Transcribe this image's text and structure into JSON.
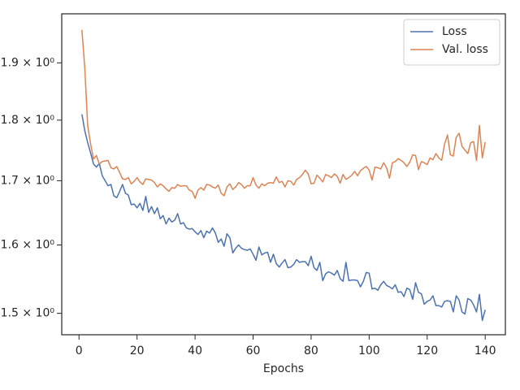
{
  "chart_data": {
    "type": "line",
    "xlabel": "Epochs",
    "x": [
      1,
      2,
      3,
      4,
      5,
      6,
      7,
      8,
      9,
      10,
      11,
      12,
      13,
      14,
      15,
      16,
      17,
      18,
      19,
      20,
      21,
      22,
      23,
      24,
      25,
      26,
      27,
      28,
      29,
      30,
      31,
      32,
      33,
      34,
      35,
      36,
      37,
      38,
      39,
      40,
      41,
      42,
      43,
      44,
      45,
      46,
      47,
      48,
      49,
      50,
      51,
      52,
      53,
      54,
      55,
      56,
      57,
      58,
      59,
      60,
      61,
      62,
      63,
      64,
      65,
      66,
      67,
      68,
      69,
      70,
      71,
      72,
      73,
      74,
      75,
      76,
      77,
      78,
      79,
      80,
      81,
      82,
      83,
      84,
      85,
      86,
      87,
      88,
      89,
      90,
      91,
      92,
      93,
      94,
      95,
      96,
      97,
      98,
      99,
      100,
      101,
      102,
      103,
      104,
      105,
      106,
      107,
      108,
      109,
      110,
      111,
      112,
      113,
      114,
      115,
      116,
      117,
      118,
      119,
      120,
      121,
      122,
      123,
      124,
      125,
      126,
      127,
      128,
      129,
      130,
      131,
      132,
      133,
      134,
      135,
      136,
      137,
      138,
      139,
      140
    ],
    "series": [
      {
        "name": "Loss",
        "color": "#4c72b0",
        "values": [
          1.81,
          1.782,
          1.762,
          1.745,
          1.727,
          1.722,
          1.728,
          1.708,
          1.7,
          1.692,
          1.694,
          1.676,
          1.673,
          1.683,
          1.694,
          1.68,
          1.677,
          1.662,
          1.663,
          1.657,
          1.664,
          1.653,
          1.675,
          1.65,
          1.659,
          1.648,
          1.657,
          1.64,
          1.645,
          1.632,
          1.641,
          1.635,
          1.638,
          1.648,
          1.632,
          1.634,
          1.626,
          1.624,
          1.625,
          1.62,
          1.616,
          1.622,
          1.611,
          1.621,
          1.618,
          1.626,
          1.618,
          1.604,
          1.609,
          1.598,
          1.617,
          1.611,
          1.588,
          1.595,
          1.6,
          1.595,
          1.593,
          1.592,
          1.594,
          1.586,
          1.577,
          1.597,
          1.585,
          1.588,
          1.589,
          1.574,
          1.586,
          1.572,
          1.567,
          1.573,
          1.578,
          1.566,
          1.567,
          1.571,
          1.578,
          1.574,
          1.575,
          1.575,
          1.569,
          1.583,
          1.566,
          1.562,
          1.574,
          1.547,
          1.557,
          1.56,
          1.558,
          1.555,
          1.562,
          1.55,
          1.546,
          1.574,
          1.547,
          1.548,
          1.548,
          1.547,
          1.538,
          1.546,
          1.559,
          1.558,
          1.535,
          1.536,
          1.533,
          1.541,
          1.546,
          1.54,
          1.538,
          1.535,
          1.541,
          1.53,
          1.531,
          1.524,
          1.536,
          1.534,
          1.52,
          1.544,
          1.53,
          1.528,
          1.513,
          1.517,
          1.519,
          1.525,
          1.511,
          1.511,
          1.509,
          1.517,
          1.518,
          1.517,
          1.502,
          1.525,
          1.519,
          1.502,
          1.499,
          1.521,
          1.519,
          1.512,
          1.502,
          1.527,
          1.49,
          1.505
        ]
      },
      {
        "name": "Val. loss",
        "color": "#dd8452",
        "values": [
          1.96,
          1.89,
          1.79,
          1.76,
          1.735,
          1.741,
          1.727,
          1.731,
          1.732,
          1.733,
          1.721,
          1.719,
          1.723,
          1.713,
          1.703,
          1.702,
          1.705,
          1.695,
          1.699,
          1.705,
          1.698,
          1.694,
          1.703,
          1.702,
          1.701,
          1.697,
          1.69,
          1.695,
          1.692,
          1.687,
          1.683,
          1.689,
          1.688,
          1.694,
          1.691,
          1.692,
          1.692,
          1.685,
          1.683,
          1.672,
          1.685,
          1.689,
          1.685,
          1.694,
          1.693,
          1.69,
          1.688,
          1.693,
          1.68,
          1.676,
          1.69,
          1.695,
          1.686,
          1.69,
          1.697,
          1.694,
          1.688,
          1.692,
          1.692,
          1.705,
          1.693,
          1.688,
          1.695,
          1.692,
          1.696,
          1.697,
          1.696,
          1.706,
          1.697,
          1.699,
          1.69,
          1.7,
          1.699,
          1.693,
          1.702,
          1.705,
          1.71,
          1.717,
          1.711,
          1.695,
          1.696,
          1.709,
          1.704,
          1.698,
          1.71,
          1.708,
          1.705,
          1.711,
          1.707,
          1.696,
          1.71,
          1.702,
          1.705,
          1.709,
          1.715,
          1.708,
          1.716,
          1.72,
          1.723,
          1.717,
          1.701,
          1.722,
          1.721,
          1.719,
          1.729,
          1.721,
          1.704,
          1.729,
          1.731,
          1.736,
          1.733,
          1.729,
          1.723,
          1.73,
          1.742,
          1.741,
          1.718,
          1.731,
          1.729,
          1.726,
          1.737,
          1.734,
          1.744,
          1.737,
          1.733,
          1.76,
          1.775,
          1.742,
          1.74,
          1.771,
          1.778,
          1.756,
          1.75,
          1.744,
          1.762,
          1.764,
          1.733,
          1.791,
          1.737,
          1.763
        ]
      }
    ],
    "xlim": [
      -5.95,
      146.95
    ],
    "xticks": [
      0,
      20,
      40,
      60,
      80,
      100,
      120,
      140
    ],
    "ylim": [
      1.47,
      1.99
    ],
    "log_y": true,
    "yticks": [
      {
        "value": 1.5,
        "label": "1.5 × 10⁰"
      },
      {
        "value": 1.6,
        "label": "1.6 × 10⁰"
      },
      {
        "value": 1.7,
        "label": "1.7 × 10⁰"
      },
      {
        "value": 1.8,
        "label": "1.8 × 10⁰"
      },
      {
        "value": 1.9,
        "label": "1.9 × 10⁰"
      }
    ],
    "grid": false,
    "legend": "upper right"
  }
}
